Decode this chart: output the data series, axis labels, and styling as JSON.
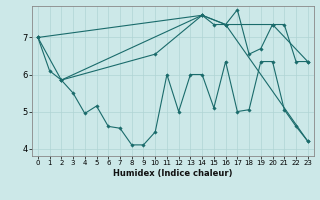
{
  "title": "",
  "xlabel": "Humidex (Indice chaleur)",
  "bg_color": "#cce8e8",
  "line_color": "#1a6b6b",
  "grid_color": "#b0d4d4",
  "xlim": [
    -0.5,
    23.5
  ],
  "ylim": [
    3.8,
    7.85
  ],
  "xticks": [
    0,
    1,
    2,
    3,
    4,
    5,
    6,
    7,
    8,
    9,
    10,
    11,
    12,
    13,
    14,
    15,
    16,
    17,
    18,
    19,
    20,
    21,
    22,
    23
  ],
  "yticks": [
    4,
    5,
    6,
    7
  ],
  "lines": [
    {
      "x": [
        0,
        1,
        2,
        3,
        4,
        5,
        6,
        7,
        8,
        9,
        10,
        11,
        12,
        13,
        14,
        15,
        16,
        17,
        18,
        19,
        20,
        21,
        22,
        23
      ],
      "y": [
        7.0,
        6.1,
        5.85,
        5.5,
        4.95,
        5.15,
        4.6,
        4.55,
        4.1,
        4.1,
        4.45,
        6.0,
        5.0,
        6.0,
        6.0,
        5.1,
        6.35,
        5.0,
        5.05,
        6.35,
        6.35,
        5.05,
        4.6,
        4.2
      ]
    },
    {
      "x": [
        0,
        2,
        10,
        14,
        15,
        16,
        17,
        18,
        19,
        20,
        21,
        22,
        23
      ],
      "y": [
        7.0,
        5.85,
        6.55,
        7.6,
        7.35,
        7.35,
        7.75,
        6.55,
        6.7,
        7.35,
        7.35,
        6.35,
        6.35
      ]
    },
    {
      "x": [
        2,
        14,
        16,
        20,
        23
      ],
      "y": [
        5.85,
        7.6,
        7.35,
        7.35,
        6.35
      ]
    },
    {
      "x": [
        0,
        14,
        16,
        23
      ],
      "y": [
        7.0,
        7.6,
        7.35,
        4.2
      ]
    }
  ]
}
